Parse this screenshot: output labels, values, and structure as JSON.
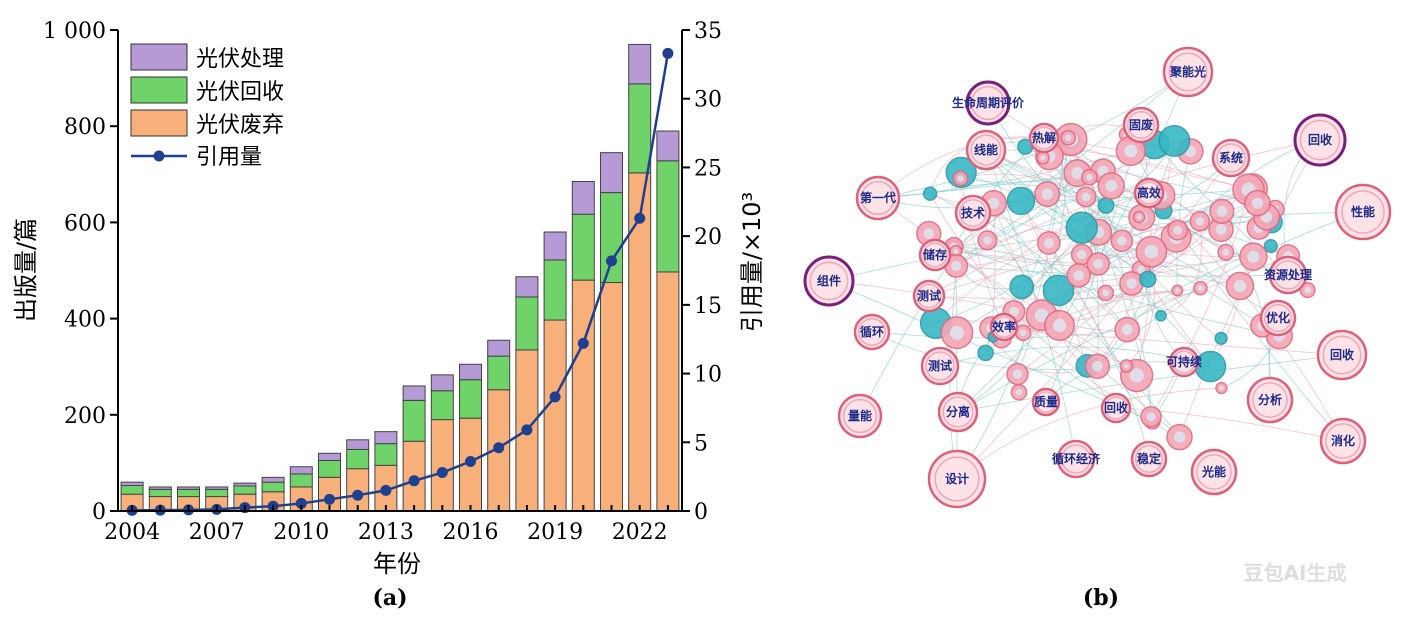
{
  "colors": {
    "disposal": "#b59ad6",
    "recycling": "#6fd36a",
    "waste": "#f7b07a",
    "citations": "#1f3f8f",
    "node_pink": "#f4a6b5",
    "node_teal": "#37b7c4",
    "node_purple_border": "#7a1f7a",
    "link_teal": "#7fc9c9",
    "link_pink": "#f2a3b3"
  },
  "chart_data": {
    "type": "bar",
    "title": "",
    "panel_label": "(a)",
    "xlabel": "年份",
    "ylabel": "出版量/篇",
    "y2label": "引用量/×10³",
    "ylim": [
      0,
      1000
    ],
    "y2lim": [
      0,
      35
    ],
    "yticks": [
      0,
      200,
      400,
      600,
      800,
      1000
    ],
    "ytick_labels": [
      "0",
      "200",
      "400",
      "600",
      "800",
      "1 000"
    ],
    "y2ticks": [
      0,
      5,
      10,
      15,
      20,
      25,
      30,
      35
    ],
    "y2tick_labels": [
      "0",
      "5",
      "10",
      "15",
      "20",
      "25",
      "30",
      "35"
    ],
    "x": [
      2004,
      2005,
      2006,
      2007,
      2008,
      2009,
      2010,
      2011,
      2012,
      2013,
      2014,
      2015,
      2016,
      2017,
      2018,
      2019,
      2020,
      2021,
      2022,
      2023
    ],
    "xtick_labels": [
      "2004",
      "2007",
      "2010",
      "2013",
      "2016",
      "2019",
      "2022"
    ],
    "legend": [
      "光伏处理",
      "光伏回收",
      "光伏废弃",
      "引用量"
    ],
    "series": [
      {
        "name": "光伏废弃",
        "values": [
          35,
          30,
          30,
          30,
          35,
          40,
          50,
          70,
          88,
          95,
          145,
          190,
          193,
          252,
          335,
          397,
          480,
          475,
          703,
          497
        ]
      },
      {
        "name": "光伏回收",
        "values": [
          18,
          15,
          15,
          15,
          17,
          20,
          27,
          35,
          40,
          45,
          85,
          60,
          80,
          70,
          110,
          125,
          137,
          187,
          185,
          231
        ]
      },
      {
        "name": "光伏处理",
        "values": [
          7,
          5,
          5,
          5,
          6,
          10,
          15,
          15,
          20,
          25,
          30,
          33,
          32,
          33,
          42,
          58,
          68,
          83,
          82,
          62
        ]
      },
      {
        "name": "引用量",
        "axis": "right",
        "values": [
          0.05,
          0.06,
          0.08,
          0.12,
          0.25,
          0.35,
          0.55,
          0.85,
          1.15,
          1.5,
          2.2,
          2.8,
          3.6,
          4.6,
          5.9,
          8.3,
          12.2,
          18.2,
          21.3,
          33.3
        ]
      }
    ]
  },
  "network": {
    "panel_label": "(b)",
    "labels": [
      "聚能光",
      "生命周期评价",
      "固废",
      "回收",
      "线能",
      "系统",
      "第一代",
      "性能",
      "技术",
      "储存",
      "资源处理",
      "组件",
      "测试",
      "循环",
      "优化",
      "回收",
      "测试",
      "分析",
      "量能",
      "分离",
      "消化",
      "循环经济",
      "稳定",
      "设计",
      "光能",
      "热解",
      "回收",
      "可持续",
      "质量",
      "高效",
      "效率"
    ]
  },
  "watermark": "豆包AI生成"
}
